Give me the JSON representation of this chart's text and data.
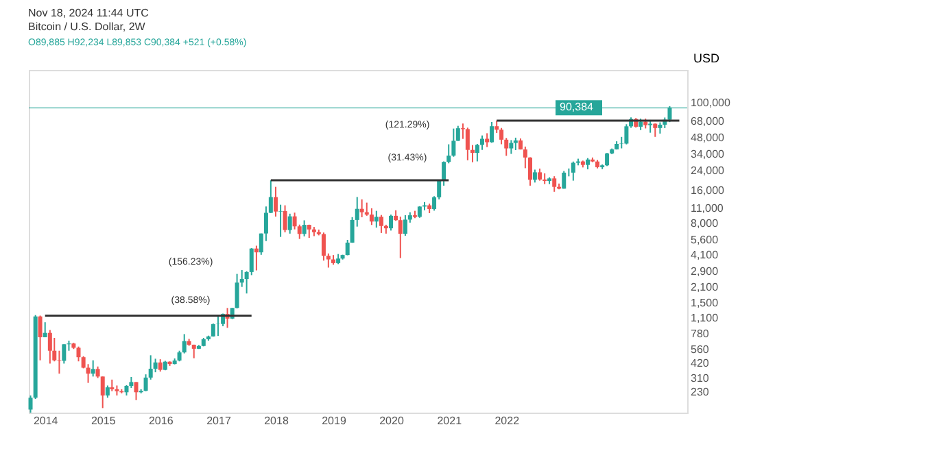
{
  "chart_data": {
    "type": "candlestick",
    "title": "Bitcoin / U.S. Dollar, 2W",
    "subtitle": "O89,885 H92,234 L89,853 C90,384 +521 (+0.58%)",
    "x": [
      "2013-10",
      "2013-11",
      "2013-12",
      "2014-01",
      "2014-02",
      "2014-03",
      "2014-04",
      "2014-05",
      "2014-06",
      "2014-07",
      "2014-08",
      "2014-09",
      "2014-10",
      "2014-11",
      "2014-12",
      "2015-01",
      "2015-02",
      "2015-03",
      "2015-04",
      "2015-05",
      "2015-06",
      "2015-07",
      "2015-08",
      "2015-09",
      "2015-10",
      "2015-11",
      "2015-12",
      "2016-01",
      "2016-02",
      "2016-03",
      "2016-04",
      "2016-05",
      "2016-06",
      "2016-07",
      "2016-08",
      "2016-09",
      "2016-10",
      "2016-11",
      "2016-12",
      "2017-01",
      "2017-02",
      "2017-03",
      "2017-04",
      "2017-05",
      "2017-06",
      "2017-07",
      "2017-08",
      "2017-09",
      "2017-10",
      "2017-11",
      "2017-12",
      "2018-01",
      "2018-02",
      "2018-03",
      "2018-04",
      "2018-05",
      "2018-06",
      "2018-07",
      "2018-08",
      "2018-09",
      "2018-10",
      "2018-11",
      "2018-12",
      "2019-01",
      "2019-02",
      "2019-03",
      "2019-04",
      "2019-05",
      "2019-06",
      "2019-07",
      "2019-08",
      "2019-09",
      "2019-10",
      "2019-11",
      "2019-12",
      "2020-01",
      "2020-02",
      "2020-03",
      "2020-04",
      "2020-05",
      "2020-06",
      "2020-07",
      "2020-08",
      "2020-09",
      "2020-10",
      "2020-11",
      "2020-12",
      "2021-01",
      "2021-02",
      "2021-03",
      "2021-04",
      "2021-05",
      "2021-06",
      "2021-07",
      "2021-08",
      "2021-09",
      "2021-10",
      "2021-11",
      "2021-12",
      "2022-01",
      "2022-02",
      "2022-03",
      "2022-04",
      "2022-05",
      "2022-06",
      "2022-07",
      "2022-08",
      "2022-09",
      "2022-10",
      "2022-11",
      "2022-12",
      "2023-01",
      "2023-02",
      "2023-03",
      "2023-04",
      "2023-05",
      "2023-06",
      "2023-07",
      "2023-08",
      "2023-09",
      "2023-10",
      "2023-11",
      "2023-12",
      "2024-01",
      "2024-02",
      "2024-03",
      "2024-04",
      "2024-05",
      "2024-06",
      "2024-07",
      "2024-08",
      "2024-09",
      "2024-10",
      "2024-11"
    ],
    "ohlc": [
      [
        160,
        215,
        150,
        205
      ],
      [
        205,
        1163,
        200,
        1130
      ],
      [
        1130,
        1150,
        450,
        730
      ],
      [
        730,
        1000,
        730,
        800
      ],
      [
        800,
        850,
        420,
        550
      ],
      [
        550,
        720,
        440,
        450
      ],
      [
        450,
        550,
        340,
        445
      ],
      [
        445,
        630,
        420,
        630
      ],
      [
        630,
        680,
        550,
        640
      ],
      [
        640,
        650,
        570,
        585
      ],
      [
        585,
        600,
        440,
        480
      ],
      [
        480,
        490,
        380,
        385
      ],
      [
        385,
        415,
        280,
        340
      ],
      [
        340,
        450,
        320,
        375
      ],
      [
        375,
        395,
        310,
        320
      ],
      [
        320,
        320,
        165,
        215
      ],
      [
        215,
        265,
        205,
        255
      ],
      [
        255,
        300,
        235,
        245
      ],
      [
        245,
        265,
        215,
        235
      ],
      [
        235,
        245,
        225,
        230
      ],
      [
        230,
        267,
        215,
        263
      ],
      [
        263,
        317,
        252,
        285
      ],
      [
        285,
        285,
        195,
        230
      ],
      [
        230,
        245,
        225,
        237
      ],
      [
        237,
        335,
        235,
        313
      ],
      [
        313,
        500,
        300,
        377
      ],
      [
        377,
        465,
        350,
        430
      ],
      [
        430,
        460,
        355,
        368
      ],
      [
        368,
        445,
        365,
        437
      ],
      [
        437,
        440,
        400,
        416
      ],
      [
        416,
        468,
        413,
        448
      ],
      [
        448,
        550,
        440,
        531
      ],
      [
        531,
        780,
        520,
        673
      ],
      [
        673,
        705,
        610,
        624
      ],
      [
        624,
        625,
        470,
        573
      ],
      [
        573,
        620,
        570,
        608
      ],
      [
        608,
        720,
        603,
        700
      ],
      [
        700,
        755,
        680,
        743
      ],
      [
        743,
        975,
        740,
        960
      ],
      [
        960,
        1150,
        750,
        965
      ],
      [
        965,
        1200,
        920,
        1190
      ],
      [
        1190,
        1350,
        890,
        1080
      ],
      [
        1080,
        1350,
        1070,
        1350
      ],
      [
        1350,
        2760,
        1340,
        2300
      ],
      [
        2300,
        2990,
        2100,
        2480
      ],
      [
        2480,
        2920,
        1830,
        2870
      ],
      [
        2870,
        4740,
        2690,
        4700
      ],
      [
        4700,
        4990,
        2970,
        4340
      ],
      [
        4340,
        6450,
        4120,
        6450
      ],
      [
        6450,
        11370,
        5500,
        9950
      ],
      [
        9950,
        19670,
        9900,
        13850
      ],
      [
        13850,
        17170,
        9200,
        10220
      ],
      [
        10220,
        11800,
        6000,
        10330
      ],
      [
        10330,
        11650,
        6600,
        6930
      ],
      [
        6930,
        9770,
        6430,
        9240
      ],
      [
        9240,
        9990,
        7030,
        7490
      ],
      [
        7490,
        7770,
        5750,
        6390
      ],
      [
        6390,
        8500,
        6070,
        7730
      ],
      [
        7730,
        7760,
        5880,
        7020
      ],
      [
        7020,
        7400,
        6100,
        6630
      ],
      [
        6630,
        7000,
        6200,
        6370
      ],
      [
        6370,
        6580,
        3650,
        4040
      ],
      [
        4040,
        4240,
        3150,
        3740
      ],
      [
        3740,
        4100,
        3350,
        3460
      ],
      [
        3460,
        4190,
        3390,
        3810
      ],
      [
        3810,
        4130,
        3730,
        4100
      ],
      [
        4100,
        5640,
        4080,
        5320
      ],
      [
        5320,
        9090,
        5300,
        8570
      ],
      [
        8570,
        13880,
        7450,
        10820
      ],
      [
        10820,
        13200,
        9070,
        10080
      ],
      [
        10080,
        12330,
        9350,
        9590
      ],
      [
        9590,
        10950,
        7710,
        8290
      ],
      [
        8290,
        10370,
        7300,
        9150
      ],
      [
        9150,
        9510,
        6520,
        7550
      ],
      [
        7550,
        7750,
        6430,
        7190
      ],
      [
        7190,
        9580,
        6860,
        9350
      ],
      [
        9350,
        10500,
        8410,
        8530
      ],
      [
        8530,
        9180,
        3850,
        6410
      ],
      [
        6410,
        9470,
        6150,
        8630
      ],
      [
        8630,
        10070,
        8100,
        9450
      ],
      [
        9450,
        10380,
        8900,
        9140
      ],
      [
        9140,
        11440,
        8960,
        11350
      ],
      [
        11350,
        12470,
        10500,
        11650
      ],
      [
        11650,
        12070,
        9880,
        10780
      ],
      [
        10780,
        14100,
        10420,
        13800
      ],
      [
        13800,
        19880,
        13200,
        19700
      ],
      [
        19700,
        29300,
        17600,
        28990
      ],
      [
        28990,
        41950,
        28130,
        33110
      ],
      [
        33110,
        58350,
        32300,
        45140
      ],
      [
        45140,
        61790,
        44950,
        58740
      ],
      [
        58740,
        64900,
        47000,
        57700
      ],
      [
        57700,
        59500,
        30000,
        37300
      ],
      [
        37300,
        41300,
        28800,
        35040
      ],
      [
        35040,
        42300,
        29300,
        41460
      ],
      [
        41460,
        50500,
        37300,
        47100
      ],
      [
        47100,
        52900,
        39600,
        43820
      ],
      [
        43820,
        67000,
        43300,
        61300
      ],
      [
        61300,
        69000,
        53250,
        57000
      ],
      [
        57000,
        59100,
        42000,
        46200
      ],
      [
        46200,
        47950,
        32950,
        38480
      ],
      [
        38480,
        45800,
        34300,
        43160
      ],
      [
        43160,
        48200,
        37150,
        45500
      ],
      [
        45500,
        47450,
        37600,
        37650
      ],
      [
        37650,
        40000,
        25400,
        31780
      ],
      [
        31780,
        31950,
        17600,
        19930
      ],
      [
        19930,
        24650,
        18800,
        23300
      ],
      [
        23300,
        25200,
        19550,
        20040
      ],
      [
        20040,
        22800,
        18200,
        19420
      ],
      [
        19420,
        20980,
        18200,
        20490
      ],
      [
        20490,
        21450,
        15480,
        17160
      ],
      [
        17160,
        18400,
        16300,
        16540
      ],
      [
        16540,
        23950,
        16500,
        23130
      ],
      [
        23130,
        25250,
        21400,
        23140
      ],
      [
        23140,
        29200,
        19550,
        28470
      ],
      [
        28470,
        31000,
        26950,
        29250
      ],
      [
        29250,
        29800,
        25800,
        27200
      ],
      [
        27200,
        31400,
        24800,
        30470
      ],
      [
        30470,
        31800,
        28850,
        29230
      ],
      [
        29230,
        30200,
        25300,
        25940
      ],
      [
        25940,
        27500,
        24900,
        26970
      ],
      [
        26970,
        35000,
        26550,
        34650
      ],
      [
        34650,
        38400,
        34100,
        37720
      ],
      [
        37720,
        44700,
        37600,
        42280
      ],
      [
        42280,
        48970,
        38500,
        42580
      ],
      [
        42580,
        63900,
        41880,
        61180
      ],
      [
        61180,
        73800,
        59300,
        71300
      ],
      [
        71300,
        72800,
        59600,
        60650
      ],
      [
        60650,
        71950,
        56550,
        67500
      ],
      [
        67500,
        71980,
        58500,
        62750
      ],
      [
        62750,
        70000,
        53500,
        64600
      ],
      [
        64600,
        65000,
        49000,
        59000
      ],
      [
        59000,
        66500,
        52550,
        63300
      ],
      [
        63300,
        73600,
        58900,
        70300
      ],
      [
        70300,
        93480,
        66800,
        90384
      ]
    ],
    "colors": [
      "#26a69a",
      "#26a69a",
      "#ef5350",
      "#26a69a",
      "#ef5350",
      "#ef5350",
      "#ef5350",
      "#26a69a",
      "#26a69a",
      "#ef5350",
      "#ef5350",
      "#ef5350",
      "#ef5350",
      "#26a69a",
      "#ef5350",
      "#ef5350",
      "#26a69a",
      "#ef5350",
      "#ef5350",
      "#ef5350",
      "#26a69a",
      "#26a69a",
      "#ef5350",
      "#26a69a",
      "#26a69a",
      "#26a69a",
      "#26a69a",
      "#ef5350",
      "#26a69a",
      "#ef5350",
      "#26a69a",
      "#26a69a",
      "#26a69a",
      "#ef5350",
      "#ef5350",
      "#26a69a",
      "#26a69a",
      "#26a69a",
      "#26a69a",
      "#26a69a",
      "#26a69a",
      "#ef5350",
      "#26a69a",
      "#26a69a",
      "#26a69a",
      "#26a69a",
      "#26a69a",
      "#ef5350",
      "#26a69a",
      "#26a69a",
      "#26a69a",
      "#ef5350",
      "#26a69a",
      "#ef5350",
      "#26a69a",
      "#ef5350",
      "#ef5350",
      "#26a69a",
      "#ef5350",
      "#ef5350",
      "#ef5350",
      "#ef5350",
      "#ef5350",
      "#ef5350",
      "#26a69a",
      "#26a69a",
      "#26a69a",
      "#26a69a",
      "#26a69a",
      "#ef5350",
      "#ef5350",
      "#ef5350",
      "#26a69a",
      "#ef5350",
      "#ef5350",
      "#26a69a",
      "#ef5350",
      "#ef5350",
      "#26a69a",
      "#26a69a",
      "#ef5350",
      "#26a69a",
      "#26a69a",
      "#ef5350",
      "#26a69a",
      "#26a69a",
      "#26a69a",
      "#26a69a",
      "#26a69a",
      "#26a69a",
      "#ef5350",
      "#ef5350",
      "#ef5350",
      "#26a69a",
      "#26a69a",
      "#ef5350",
      "#26a69a",
      "#ef5350",
      "#ef5350",
      "#ef5350",
      "#26a69a",
      "#26a69a",
      "#ef5350",
      "#ef5350",
      "#ef5350",
      "#26a69a",
      "#ef5350",
      "#ef5350",
      "#26a69a",
      "#ef5350",
      "#ef5350",
      "#26a69a",
      "#26a69a",
      "#26a69a",
      "#26a69a",
      "#ef5350",
      "#26a69a",
      "#ef5350",
      "#ef5350",
      "#26a69a",
      "#26a69a",
      "#26a69a",
      "#26a69a",
      "#26a69a",
      "#26a69a",
      "#26a69a",
      "#ef5350",
      "#26a69a",
      "#ef5350",
      "#26a69a",
      "#ef5350",
      "#26a69a",
      "#26a69a",
      "#26a69a"
    ],
    "series": [
      {
        "type": "line",
        "color": "#333333",
        "x": [
          "2014-01",
          "2017-08"
        ],
        "values": [
          1150,
          1150
        ]
      },
      {
        "type": "line",
        "color": "#333333",
        "x": [
          "2017-12",
          "2021-01"
        ],
        "values": [
          19700,
          19700
        ]
      },
      {
        "type": "line",
        "color": "#333333",
        "x": [
          "2021-11",
          "2025-01"
        ],
        "values": [
          69000,
          69000
        ]
      }
    ],
    "ref_lines": [
      {
        "axis": "y",
        "value": 90384,
        "label": "90,384",
        "color": "#26a69a"
      }
    ],
    "annotations": [
      "Nov 18, 2024 11:44 UTC",
      "(156.23%)",
      "(38.58%)",
      "(121.29%)",
      "(31.43%)"
    ],
    "xlim": [
      "2013-09-20",
      "2025-02-20"
    ],
    "xticks": [
      {
        "value": "2014-01-01",
        "label": "2014"
      },
      {
        "value": "2015-01-01",
        "label": "2015"
      },
      {
        "value": "2016-01-01",
        "label": "2016"
      },
      {
        "value": "2017-01-01",
        "label": "2017"
      },
      {
        "value": "2018-01-01",
        "label": "2018"
      },
      {
        "value": "2019-01-01",
        "label": "2019"
      },
      {
        "value": "2020-01-01",
        "label": "2020"
      },
      {
        "value": "2021-01-01",
        "label": "2021"
      },
      {
        "value": "2022-01-01",
        "label": "2022"
      }
    ],
    "ylim": [
      150,
      200000
    ],
    "log": true,
    "yticks": [
      230,
      310,
      420,
      560,
      780,
      {
        "value": 1100,
        "label": "1,100"
      },
      {
        "value": 1500,
        "label": "1,500"
      },
      {
        "value": 2100,
        "label": "2,100"
      },
      {
        "value": 2900,
        "label": "2,900"
      },
      {
        "value": 4100,
        "label": "4,100"
      },
      {
        "value": 5600,
        "label": "5,600"
      },
      {
        "value": 8000,
        "label": "8,000"
      },
      {
        "value": 11000,
        "label": "11,000"
      },
      {
        "value": 16000,
        "label": "16,000"
      },
      {
        "value": 24000,
        "label": "24,000"
      },
      {
        "value": 34000,
        "label": "34,000"
      },
      {
        "value": 48000,
        "label": "48,000"
      },
      {
        "value": 68000,
        "label": "68,000"
      },
      {
        "value": 100000,
        "label": "100,000"
      }
    ],
    "ylabel": "USD",
    "grid": false
  }
}
